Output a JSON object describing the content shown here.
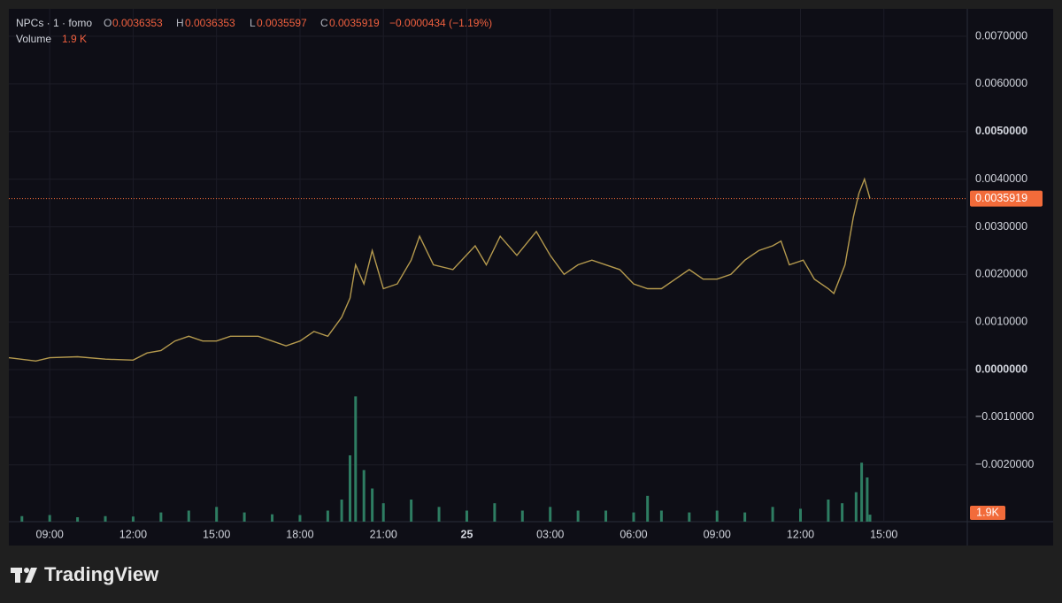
{
  "chart_data": {
    "type": "line",
    "header": {
      "symbol": "NPCs · 1 · fomo",
      "o_label": "O",
      "o": "0.0036353",
      "h_label": "H",
      "h": "0.0036353",
      "l_label": "L",
      "l": "0.0035597",
      "c_label": "C",
      "c": "0.0035919",
      "change": "−0.0000434 (−1.19%)",
      "volume_label": "Volume",
      "volume_value": "1.9 K"
    },
    "series": [
      {
        "name": "NPCs",
        "color": "#b59a4e",
        "x": [
          7.53,
          8.5,
          9,
          10,
          11,
          12,
          12.5,
          13,
          13.5,
          14,
          14.5,
          15,
          15.5,
          16,
          16.5,
          17,
          17.5,
          18,
          18.5,
          19,
          19.5,
          19.8,
          20,
          20.3,
          20.6,
          21,
          21.5,
          22,
          22.3,
          22.8,
          23.5,
          24.3,
          24.7,
          25.2,
          25.8,
          26.5,
          27,
          27.5,
          28,
          28.5,
          29.5,
          30,
          30.5,
          31,
          31.5,
          32,
          32.5,
          33,
          33.5,
          34,
          34.5,
          35,
          35.3,
          35.6,
          36.1,
          36.5,
          37,
          37.2,
          37.6,
          37.9,
          38.1,
          38.3,
          38.5
        ],
        "values": [
          0.00025,
          0.00018,
          0.00025,
          0.00027,
          0.00022,
          0.0002,
          0.00035,
          0.0004,
          0.0006,
          0.0007,
          0.0006,
          0.0006,
          0.0007,
          0.0007,
          0.0007,
          0.0006,
          0.0005,
          0.0006,
          0.0008,
          0.0007,
          0.0011,
          0.0015,
          0.0022,
          0.0018,
          0.0025,
          0.0017,
          0.0018,
          0.0023,
          0.0028,
          0.0022,
          0.0021,
          0.0026,
          0.0022,
          0.0028,
          0.0024,
          0.0029,
          0.0024,
          0.002,
          0.0022,
          0.0023,
          0.0021,
          0.0018,
          0.0017,
          0.0017,
          0.0019,
          0.0021,
          0.0019,
          0.0019,
          0.002,
          0.0023,
          0.0025,
          0.0026,
          0.0027,
          0.0022,
          0.0023,
          0.0019,
          0.0017,
          0.0016,
          0.0022,
          0.0032,
          0.0037,
          0.004,
          0.0035919
        ]
      }
    ],
    "last_price": 0.0035919,
    "last_price_color": "#f26b3a",
    "volume": {
      "color": "#2e7d62",
      "x": [
        8,
        9,
        10,
        11,
        12,
        13,
        14,
        15,
        16,
        17,
        18,
        19,
        19.5,
        19.8,
        20,
        20.3,
        20.6,
        21,
        22,
        23,
        24,
        25,
        26,
        27,
        28,
        29,
        30,
        30.5,
        31,
        32,
        33,
        34,
        35,
        36,
        37,
        37.5,
        38,
        38.2,
        38.4,
        38.5
      ],
      "values": [
        1500,
        1800,
        1200,
        1500,
        1400,
        2500,
        3000,
        4000,
        2500,
        2000,
        1800,
        3000,
        6000,
        18000,
        34000,
        14000,
        9000,
        5000,
        6000,
        4000,
        3000,
        5000,
        3000,
        4000,
        3000,
        3000,
        2500,
        7000,
        3000,
        2500,
        3000,
        2500,
        4000,
        3500,
        6000,
        5000,
        8000,
        16000,
        12000,
        1900
      ],
      "ylim": [
        0,
        36000
      ],
      "last_label": "1.9K"
    },
    "xlim": [
      7.53,
      42.0
    ],
    "xticks": [
      {
        "value": 9,
        "label": "09:00"
      },
      {
        "value": 12,
        "label": "12:00"
      },
      {
        "value": 15,
        "label": "15:00"
      },
      {
        "value": 18,
        "label": "18:00"
      },
      {
        "value": 21,
        "label": "21:00"
      },
      {
        "value": 24,
        "label": "25"
      },
      {
        "value": 27,
        "label": "03:00"
      },
      {
        "value": 30,
        "label": "06:00"
      },
      {
        "value": 33,
        "label": "09:00"
      },
      {
        "value": 36,
        "label": "12:00"
      },
      {
        "value": 39,
        "label": "15:00"
      }
    ],
    "ylim": [
      -0.003193,
      0.007576
    ],
    "yticks": [
      {
        "value": 0.007,
        "label": "0.0070000"
      },
      {
        "value": 0.006,
        "label": "0.0060000"
      },
      {
        "value": 0.005,
        "label": "0.0050000"
      },
      {
        "value": 0.004,
        "label": "0.0040000"
      },
      {
        "value": 0.003,
        "label": "0.0030000"
      },
      {
        "value": 0.002,
        "label": "0.0020000"
      },
      {
        "value": 0.001,
        "label": "0.0010000"
      },
      {
        "value": 0,
        "label": "0.0000000"
      },
      {
        "value": -0.001,
        "label": "−0.0010000"
      },
      {
        "value": -0.002,
        "label": "−0.0020000"
      }
    ],
    "grid": true,
    "brand": "TradingView"
  }
}
